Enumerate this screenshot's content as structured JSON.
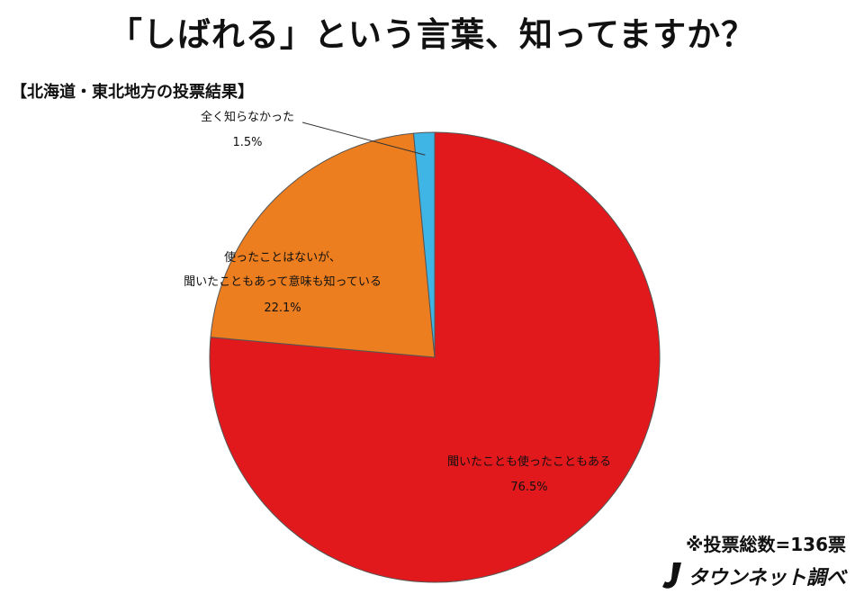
{
  "title": "「しばれる」という言葉、知ってますか？",
  "subtitle": "【北海道・東北地方の投票結果】",
  "footnote": "※投票総数=136票",
  "credit": "タウンネット調べ",
  "chart_data": {
    "type": "pie",
    "slices": [
      {
        "label": "聞いたことも使ったこともある",
        "value": 76.5,
        "value_label": "76.5%",
        "color": "#e2191c"
      },
      {
        "label_lines": [
          "使ったことはないが、",
          "聞いたこともあって意味も知っている"
        ],
        "value": 22.1,
        "value_label": "22.1%",
        "color": "#ec7e1f"
      },
      {
        "label": "全く知らなかった",
        "value": 1.5,
        "value_label": "1.5%",
        "color": "#3fb5e6"
      }
    ]
  }
}
